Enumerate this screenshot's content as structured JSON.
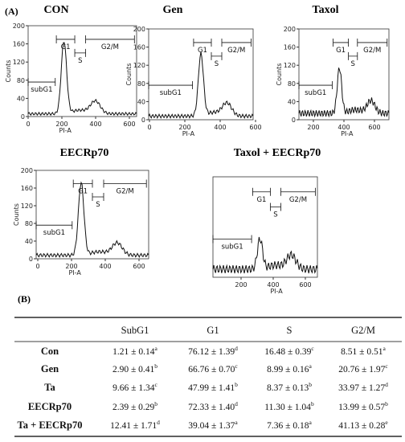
{
  "panel_a": {
    "label": "(A)",
    "plots": [
      {
        "title": "CON",
        "y_label": "Counts",
        "x_label": "PI-A",
        "yticks": [
          "0",
          "40",
          "80",
          "120",
          "160",
          "200"
        ],
        "xticks": [
          "0",
          "200",
          "400",
          "600"
        ],
        "gates": [
          "subG1",
          "G1",
          "S",
          "G2/M"
        ]
      },
      {
        "title": "Gen",
        "y_label": "Counts",
        "x_label": "PI-A",
        "yticks": [
          "0",
          "40",
          "80",
          "120",
          "160",
          "200"
        ],
        "xticks": [
          "0",
          "200",
          "400",
          "600"
        ],
        "gates": [
          "subG1",
          "G1",
          "S",
          "G2/M"
        ]
      },
      {
        "title": "Taxol",
        "y_label": "Counts",
        "x_label": "PI-A",
        "yticks": [
          "0",
          "40",
          "80",
          "120",
          "160",
          "200"
        ],
        "xticks": [
          "200",
          "400",
          "600"
        ],
        "gates": [
          "subG1",
          "G1",
          "S",
          "G2/M"
        ]
      },
      {
        "title": "EECRp70",
        "y_label": "Counts",
        "x_label": "PI-A",
        "yticks": [
          "0",
          "40",
          "80",
          "120",
          "160",
          "200"
        ],
        "xticks": [
          "0",
          "200",
          "400",
          "600"
        ],
        "gates": [
          "subG1",
          "G1",
          "S",
          "G2/M"
        ]
      },
      {
        "title": "Taxol + EECRp70",
        "x_label": "PI-A",
        "xticks": [
          "200",
          "400",
          "600"
        ],
        "gates": [
          "subG1",
          "G1",
          "S",
          "G2/M"
        ]
      }
    ]
  },
  "panel_b": {
    "label": "(B)",
    "table": {
      "header": [
        "SubG1",
        "G1",
        "S",
        "G2/M"
      ],
      "rows": [
        {
          "name": "Con",
          "cells": [
            {
              "text": "1.21 ± 0.14",
              "sup": "a"
            },
            {
              "text": "76.12 ± 1.39",
              "sup": "d"
            },
            {
              "text": "16.48 ± 0.39",
              "sup": "c"
            },
            {
              "text": "8.51 ± 0.51",
              "sup": "a"
            }
          ]
        },
        {
          "name": "Gen",
          "cells": [
            {
              "text": "2.90 ± 0.41",
              "sup": "b"
            },
            {
              "text": "66.76 ± 0.70",
              "sup": "c"
            },
            {
              "text": "8.99 ± 0.16",
              "sup": "a"
            },
            {
              "text": "20.76 ± 1.97",
              "sup": "c"
            }
          ]
        },
        {
          "name": "Ta",
          "cells": [
            {
              "text": "9.66 ± 1.34",
              "sup": "c"
            },
            {
              "text": "47.99 ± 1.41",
              "sup": "b"
            },
            {
              "text": "8.37 ± 0.13",
              "sup": "b"
            },
            {
              "text": "33.97 ± 1.27",
              "sup": "d"
            }
          ]
        },
        {
          "name": "EECRp70",
          "cells": [
            {
              "text": "2.39 ± 0.29",
              "sup": "b"
            },
            {
              "text": "72.33 ± 1.40",
              "sup": "d"
            },
            {
              "text": "11.30 ± 1.04",
              "sup": "b"
            },
            {
              "text": "13.99 ± 0.57",
              "sup": "b"
            }
          ]
        },
        {
          "name": "Ta + EECRp70",
          "cells": [
            {
              "text": "12.41 ± 1.71",
              "sup": "d"
            },
            {
              "text": "39.04 ± 1.37",
              "sup": "a"
            },
            {
              "text": "7.36 ± 0.18",
              "sup": "a"
            },
            {
              "text": "41.13 ± 0.28",
              "sup": "e"
            }
          ]
        }
      ]
    }
  }
}
